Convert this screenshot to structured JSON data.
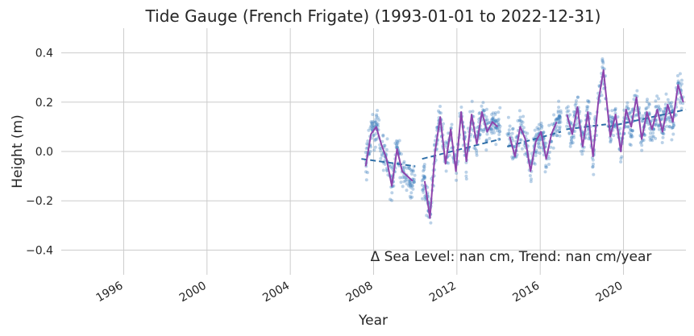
{
  "chart_data": {
    "type": "scatter",
    "title": "Tide Gauge (French Frigate) (1993-01-01 to 2022-12-31)",
    "xlabel": "Year",
    "ylabel": "Height (m)",
    "xlim": [
      "1993-01-01",
      "2022-12-31"
    ],
    "ylim": [
      -0.5,
      0.5
    ],
    "x_ticks": [
      "1996",
      "2000",
      "2004",
      "2008",
      "2012",
      "2016",
      "2020"
    ],
    "y_ticks": [
      "−0.4",
      "−0.2",
      "0.0",
      "0.2",
      "0.4"
    ],
    "y_tick_values": [
      -0.4,
      -0.2,
      0.0,
      0.2,
      0.4
    ],
    "grid": true,
    "annotation": "Δ Sea Level: nan cm, Trend: nan cm/year",
    "colors": {
      "points": "#3b7ebc",
      "monthly_line": "#8e44ad",
      "trend_line": "#2f6fa8",
      "grid": "#cccccc"
    },
    "series": [
      {
        "type": "scatter",
        "segments": [
          {
            "start": "2007-06-01",
            "end": "2009-12-31"
          },
          {
            "start": "2010-05-01",
            "end": "2014-01-31"
          },
          {
            "start": "2014-06-01",
            "end": "2016-12-31"
          },
          {
            "start": "2017-04-01",
            "end": "2019-02-28"
          },
          {
            "start": "2019-04-01",
            "end": "2022-12-31"
          }
        ]
      },
      {
        "type": "line",
        "x": [
          "2007-08",
          "2007-11",
          "2008-02",
          "2008-05",
          "2008-08",
          "2008-11",
          "2009-02",
          "2009-05",
          "2009-08",
          "2009-11",
          "2010-06",
          "2010-09",
          "2010-12",
          "2011-03",
          "2011-06",
          "2011-09",
          "2011-12",
          "2012-03",
          "2012-06",
          "2012-09",
          "2012-12",
          "2013-03",
          "2013-06",
          "2013-09",
          "2013-12",
          "2014-07",
          "2014-10",
          "2015-01",
          "2015-04",
          "2015-07",
          "2015-10",
          "2016-01",
          "2016-04",
          "2016-07",
          "2016-10",
          "2017-04",
          "2017-07",
          "2017-10",
          "2018-01",
          "2018-04",
          "2018-07",
          "2018-10",
          "2019-01",
          "2019-05",
          "2019-08",
          "2019-11",
          "2020-02",
          "2020-05",
          "2020-08",
          "2020-11",
          "2021-02",
          "2021-05",
          "2021-08",
          "2021-11",
          "2022-02",
          "2022-05",
          "2022-08",
          "2022-11"
        ],
        "y": [
          -0.06,
          0.07,
          0.1,
          0.03,
          -0.03,
          -0.14,
          0.01,
          -0.08,
          -0.1,
          -0.12,
          -0.12,
          -0.27,
          0.0,
          0.14,
          -0.05,
          0.09,
          -0.08,
          0.16,
          -0.04,
          0.15,
          0.03,
          0.16,
          0.08,
          0.12,
          0.1,
          0.06,
          -0.02,
          0.1,
          0.05,
          -0.08,
          0.04,
          0.08,
          -0.03,
          0.07,
          0.12,
          0.15,
          0.07,
          0.18,
          0.02,
          0.16,
          -0.02,
          0.2,
          0.33,
          0.06,
          0.15,
          0.0,
          0.17,
          0.1,
          0.22,
          0.05,
          0.16,
          0.09,
          0.17,
          0.08,
          0.19,
          0.12,
          0.27,
          0.2
        ]
      },
      {
        "type": "trend",
        "segments": [
          {
            "x": [
              "2007-06-01",
              "2009-12-31"
            ],
            "y": [
              -0.03,
              -0.06
            ]
          },
          {
            "x": [
              "2010-05-01",
              "2014-01-31"
            ],
            "y": [
              -0.03,
              0.05
            ]
          },
          {
            "x": [
              "2014-06-01",
              "2016-12-31"
            ],
            "y": [
              0.02,
              0.08
            ]
          },
          {
            "x": [
              "2017-04-01",
              "2019-02-28"
            ],
            "y": [
              0.09,
              0.11
            ]
          },
          {
            "x": [
              "2019-04-01",
              "2022-12-31"
            ],
            "y": [
              0.1,
              0.17
            ]
          }
        ]
      }
    ]
  }
}
